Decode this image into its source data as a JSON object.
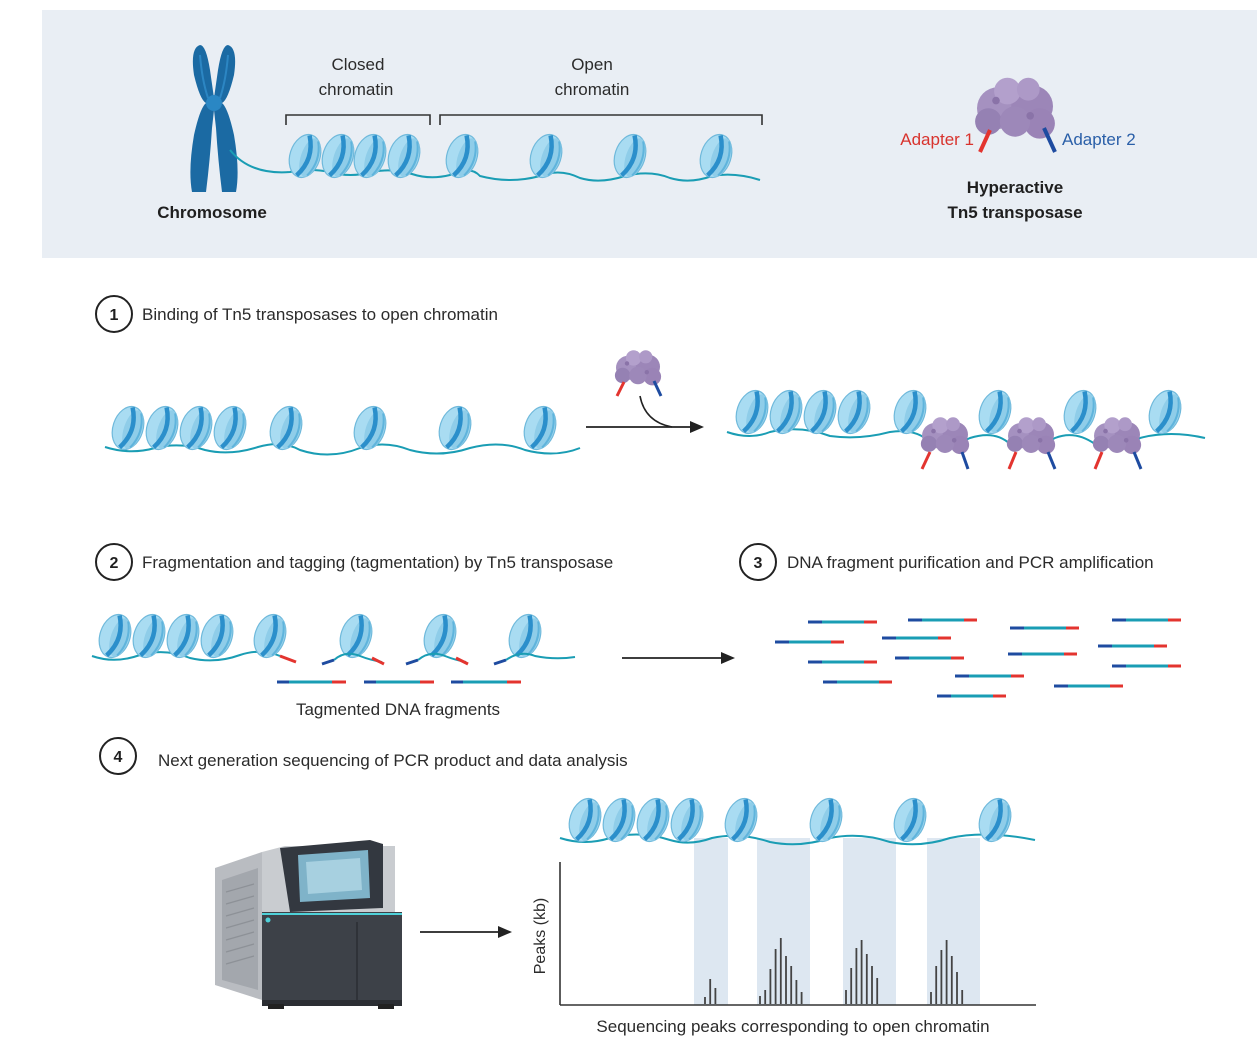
{
  "top_panel": {
    "chromosome_label": "Chromosome",
    "closed_label_line1": "Closed",
    "closed_label_line2": "chromatin",
    "open_label_line1": "Open",
    "open_label_line2": "chromatin",
    "adapter1_label": "Adapter 1",
    "adapter2_label": "Adapter 2",
    "tn5_line1": "Hyperactive",
    "tn5_line2": "Tn5 transposase"
  },
  "steps": [
    {
      "number": "1",
      "text": "Binding of Tn5 transposases to open chromatin"
    },
    {
      "number": "2",
      "text": "Fragmentation and tagging (tagmentation) by Tn5 transposase"
    },
    {
      "number": "3",
      "text": "DNA fragment purification and PCR amplification"
    },
    {
      "number": "4",
      "text": "Next generation sequencing of PCR product and data analysis"
    }
  ],
  "tagmented_label": "Tagmented DNA fragments",
  "chart": {
    "ylabel": "Peaks (kb)",
    "caption": "Sequencing peaks corresponding to open chromatin"
  },
  "colors": {
    "panel_bg": "#e9eef4",
    "dna": "#1a9db4",
    "nucleosome": "#9fd6ee",
    "nucleosome_band": "#2b8fcb",
    "transposase": "#a38cbd",
    "adapter1": "#e3342f",
    "adapter2": "#1e4ba0",
    "chromosome": "#1d6fa8",
    "peak_band": "#dde7f1",
    "peak_bar": "#444444"
  },
  "icons": [
    "chromosome-icon",
    "nucleosome-icon",
    "tn5-transposase-icon",
    "dna-fragment-icon",
    "sequencer-icon",
    "arrow-icon"
  ]
}
